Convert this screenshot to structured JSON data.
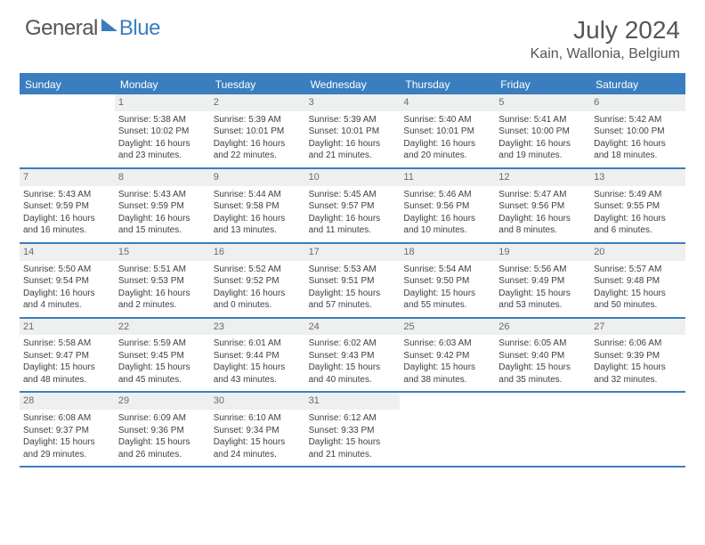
{
  "brand": {
    "word1": "General",
    "word2": "Blue"
  },
  "title": "July 2024",
  "location": "Kain, Wallonia, Belgium",
  "colors": {
    "accent": "#3a7ebf",
    "header_bg": "#3a7ebf",
    "header_text": "#ffffff",
    "daynum_bg": "#eef0f0",
    "daynum_text": "#6a6a6a",
    "body_text": "#404040",
    "page_bg": "#ffffff"
  },
  "weekdays": [
    "Sunday",
    "Monday",
    "Tuesday",
    "Wednesday",
    "Thursday",
    "Friday",
    "Saturday"
  ],
  "start_weekday_index": 1,
  "days": [
    {
      "n": 1,
      "sunrise": "5:38 AM",
      "sunset": "10:02 PM",
      "daylight": "16 hours and 23 minutes."
    },
    {
      "n": 2,
      "sunrise": "5:39 AM",
      "sunset": "10:01 PM",
      "daylight": "16 hours and 22 minutes."
    },
    {
      "n": 3,
      "sunrise": "5:39 AM",
      "sunset": "10:01 PM",
      "daylight": "16 hours and 21 minutes."
    },
    {
      "n": 4,
      "sunrise": "5:40 AM",
      "sunset": "10:01 PM",
      "daylight": "16 hours and 20 minutes."
    },
    {
      "n": 5,
      "sunrise": "5:41 AM",
      "sunset": "10:00 PM",
      "daylight": "16 hours and 19 minutes."
    },
    {
      "n": 6,
      "sunrise": "5:42 AM",
      "sunset": "10:00 PM",
      "daylight": "16 hours and 18 minutes."
    },
    {
      "n": 7,
      "sunrise": "5:43 AM",
      "sunset": "9:59 PM",
      "daylight": "16 hours and 16 minutes."
    },
    {
      "n": 8,
      "sunrise": "5:43 AM",
      "sunset": "9:59 PM",
      "daylight": "16 hours and 15 minutes."
    },
    {
      "n": 9,
      "sunrise": "5:44 AM",
      "sunset": "9:58 PM",
      "daylight": "16 hours and 13 minutes."
    },
    {
      "n": 10,
      "sunrise": "5:45 AM",
      "sunset": "9:57 PM",
      "daylight": "16 hours and 11 minutes."
    },
    {
      "n": 11,
      "sunrise": "5:46 AM",
      "sunset": "9:56 PM",
      "daylight": "16 hours and 10 minutes."
    },
    {
      "n": 12,
      "sunrise": "5:47 AM",
      "sunset": "9:56 PM",
      "daylight": "16 hours and 8 minutes."
    },
    {
      "n": 13,
      "sunrise": "5:49 AM",
      "sunset": "9:55 PM",
      "daylight": "16 hours and 6 minutes."
    },
    {
      "n": 14,
      "sunrise": "5:50 AM",
      "sunset": "9:54 PM",
      "daylight": "16 hours and 4 minutes."
    },
    {
      "n": 15,
      "sunrise": "5:51 AM",
      "sunset": "9:53 PM",
      "daylight": "16 hours and 2 minutes."
    },
    {
      "n": 16,
      "sunrise": "5:52 AM",
      "sunset": "9:52 PM",
      "daylight": "16 hours and 0 minutes."
    },
    {
      "n": 17,
      "sunrise": "5:53 AM",
      "sunset": "9:51 PM",
      "daylight": "15 hours and 57 minutes."
    },
    {
      "n": 18,
      "sunrise": "5:54 AM",
      "sunset": "9:50 PM",
      "daylight": "15 hours and 55 minutes."
    },
    {
      "n": 19,
      "sunrise": "5:56 AM",
      "sunset": "9:49 PM",
      "daylight": "15 hours and 53 minutes."
    },
    {
      "n": 20,
      "sunrise": "5:57 AM",
      "sunset": "9:48 PM",
      "daylight": "15 hours and 50 minutes."
    },
    {
      "n": 21,
      "sunrise": "5:58 AM",
      "sunset": "9:47 PM",
      "daylight": "15 hours and 48 minutes."
    },
    {
      "n": 22,
      "sunrise": "5:59 AM",
      "sunset": "9:45 PM",
      "daylight": "15 hours and 45 minutes."
    },
    {
      "n": 23,
      "sunrise": "6:01 AM",
      "sunset": "9:44 PM",
      "daylight": "15 hours and 43 minutes."
    },
    {
      "n": 24,
      "sunrise": "6:02 AM",
      "sunset": "9:43 PM",
      "daylight": "15 hours and 40 minutes."
    },
    {
      "n": 25,
      "sunrise": "6:03 AM",
      "sunset": "9:42 PM",
      "daylight": "15 hours and 38 minutes."
    },
    {
      "n": 26,
      "sunrise": "6:05 AM",
      "sunset": "9:40 PM",
      "daylight": "15 hours and 35 minutes."
    },
    {
      "n": 27,
      "sunrise": "6:06 AM",
      "sunset": "9:39 PM",
      "daylight": "15 hours and 32 minutes."
    },
    {
      "n": 28,
      "sunrise": "6:08 AM",
      "sunset": "9:37 PM",
      "daylight": "15 hours and 29 minutes."
    },
    {
      "n": 29,
      "sunrise": "6:09 AM",
      "sunset": "9:36 PM",
      "daylight": "15 hours and 26 minutes."
    },
    {
      "n": 30,
      "sunrise": "6:10 AM",
      "sunset": "9:34 PM",
      "daylight": "15 hours and 24 minutes."
    },
    {
      "n": 31,
      "sunrise": "6:12 AM",
      "sunset": "9:33 PM",
      "daylight": "15 hours and 21 minutes."
    }
  ],
  "labels": {
    "sunrise": "Sunrise:",
    "sunset": "Sunset:",
    "daylight": "Daylight:"
  }
}
